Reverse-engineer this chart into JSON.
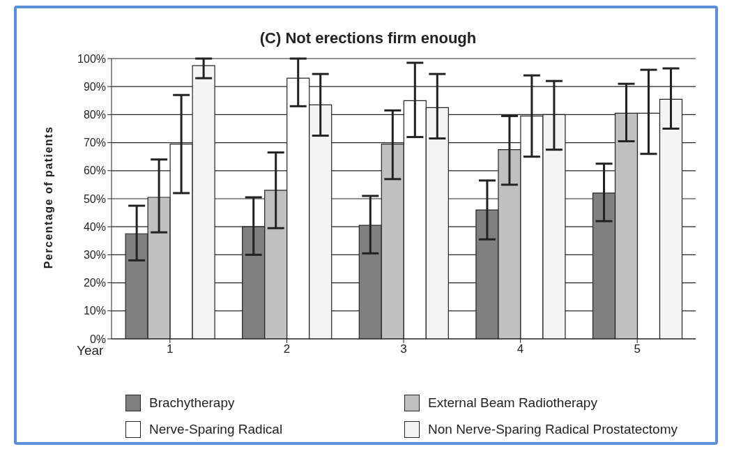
{
  "chart_data": {
    "type": "bar",
    "title": "(C) Not erections firm enough",
    "xlabel": "Year",
    "ylabel": "Percentage of patients",
    "categories": [
      "1",
      "2",
      "3",
      "4",
      "5"
    ],
    "series": [
      {
        "name": "Brachytherapy",
        "color": "#808080",
        "values": [
          37.5,
          40,
          40.5,
          46,
          52
        ],
        "errors": [
          [
            28,
            47.5
          ],
          [
            30,
            50.5
          ],
          [
            30.5,
            51
          ],
          [
            35.5,
            56.5
          ],
          [
            42,
            62.5
          ]
        ]
      },
      {
        "name": "External Beam Radiotherapy",
        "color": "#c0c0c0",
        "values": [
          50.5,
          53,
          69.5,
          67.5,
          80.5
        ],
        "errors": [
          [
            38,
            64
          ],
          [
            39.5,
            66.5
          ],
          [
            57,
            81.5
          ],
          [
            55,
            79.5
          ],
          [
            70.5,
            91
          ]
        ]
      },
      {
        "name": "Nerve-Sparing Radical",
        "color": "#ffffff",
        "values": [
          69.5,
          93,
          85,
          79.5,
          80.5
        ],
        "errors": [
          [
            52,
            87
          ],
          [
            83,
            100
          ],
          [
            72,
            98.5
          ],
          [
            65,
            94
          ],
          [
            66,
            96
          ]
        ]
      },
      {
        "name": "Non Nerve-Sparing Radical Prostatectomy",
        "color": "#f4f4f4",
        "values": [
          97.5,
          83.5,
          82.5,
          80,
          85.5
        ],
        "errors": [
          [
            93,
            100
          ],
          [
            72.5,
            94.5
          ],
          [
            71.5,
            94.5
          ],
          [
            67.5,
            92
          ],
          [
            75,
            96.5
          ]
        ]
      }
    ],
    "ylim": [
      0,
      100
    ],
    "yticks": [
      {
        "value": 0,
        "label": "0%"
      },
      {
        "value": 10,
        "label": "10%"
      },
      {
        "value": 20,
        "label": "20%"
      },
      {
        "value": 30,
        "label": "30%"
      },
      {
        "value": 40,
        "label": "40%"
      },
      {
        "value": 50,
        "label": "50%"
      },
      {
        "value": 60,
        "label": "60%"
      },
      {
        "value": 70,
        "label": "70%"
      },
      {
        "value": 80,
        "label": "80%"
      },
      {
        "value": 90,
        "label": "90%"
      },
      {
        "value": 100,
        "label": "100%"
      }
    ],
    "grid": "y",
    "legend": "bottom"
  }
}
